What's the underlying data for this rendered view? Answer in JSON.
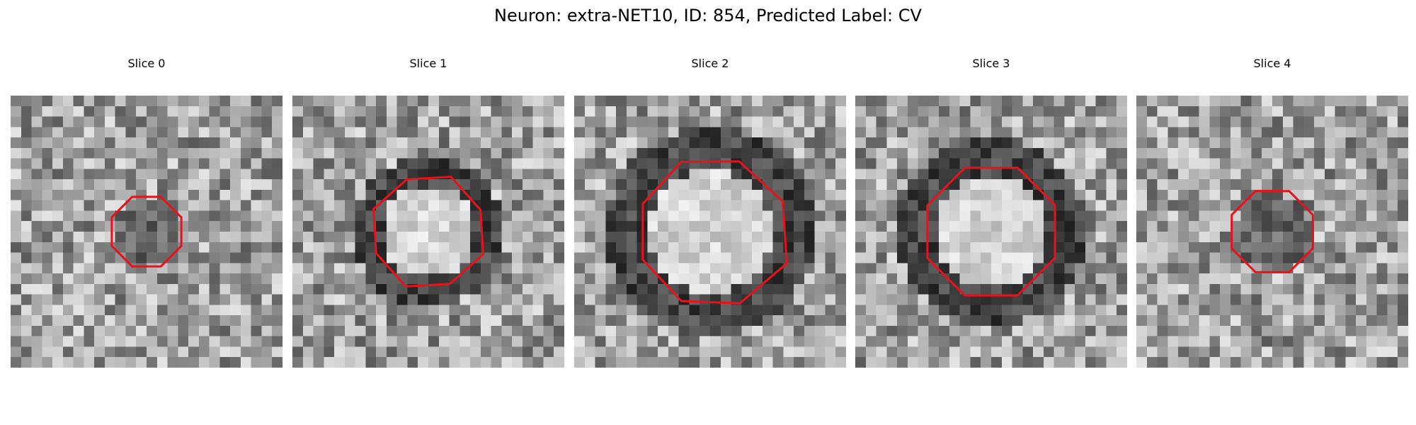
{
  "title": "Neuron: extra-NET10, ID: 854, Predicted Label: CV",
  "colormap": "gray",
  "contour_color": "#e8121a",
  "panels": [
    {
      "title": "Slice 0",
      "seed": 11,
      "center_tone": "dark",
      "contour_radius_cells": 3.6,
      "contour_style": "octagon"
    },
    {
      "title": "Slice 1",
      "seed": 23,
      "center_tone": "bright",
      "contour_radius_cells": 5.4,
      "contour_style": "rounded-square"
    },
    {
      "title": "Slice 2",
      "seed": 37,
      "center_tone": "bright",
      "contour_radius_cells": 7.4,
      "contour_style": "irregular"
    },
    {
      "title": "Slice 3",
      "seed": 53,
      "center_tone": "bright",
      "contour_radius_cells": 6.6,
      "contour_style": "octagon"
    },
    {
      "title": "Slice 4",
      "seed": 71,
      "center_tone": "dark",
      "contour_radius_cells": 4.2,
      "contour_style": "octagon"
    }
  ]
}
